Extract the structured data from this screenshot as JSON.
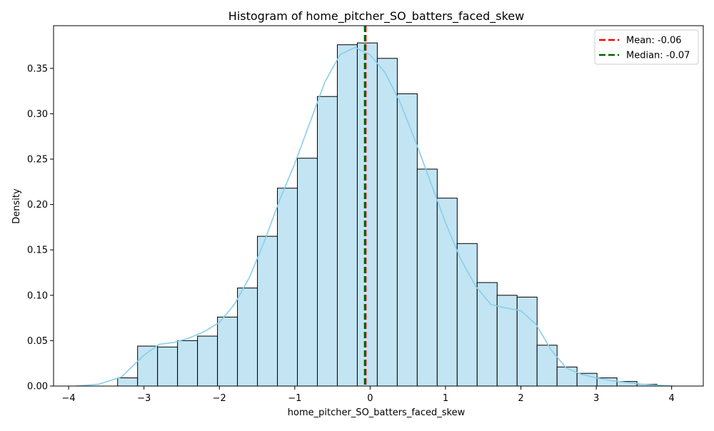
{
  "chart_data": {
    "type": "bar",
    "title": "Histogram of home_pitcher_SO_batters_faced_skew",
    "xlabel": "home_pitcher_SO_batters_faced_skew",
    "ylabel": "Density",
    "xlim": [
      -4.2,
      4.42
    ],
    "ylim": [
      0,
      0.397
    ],
    "xticks": [
      -4,
      -3,
      -2,
      -1,
      0,
      1,
      2,
      3,
      4
    ],
    "xtick_labels": [
      "−4",
      "−3",
      "−2",
      "−1",
      "0",
      "1",
      "2",
      "3",
      "4"
    ],
    "yticks": [
      0.0,
      0.05,
      0.1,
      0.15,
      0.2,
      0.25,
      0.3,
      0.35
    ],
    "ytick_labels": [
      "0.00",
      "0.05",
      "0.10",
      "0.15",
      "0.20",
      "0.25",
      "0.30",
      "0.35"
    ],
    "grid": false,
    "legend_position": "top-right",
    "bins": {
      "edges": [
        -3.35,
        -3.085,
        -2.82,
        -2.555,
        -2.29,
        -2.025,
        -1.76,
        -1.495,
        -1.23,
        -0.965,
        -0.7,
        -0.435,
        -0.17,
        0.095,
        0.36,
        0.625,
        0.89,
        1.155,
        1.42,
        1.685,
        1.95,
        2.215,
        2.48,
        2.745,
        3.01,
        3.275,
        3.54,
        3.805
      ],
      "density": [
        0.009,
        0.044,
        0.043,
        0.05,
        0.055,
        0.076,
        0.108,
        0.165,
        0.218,
        0.251,
        0.319,
        0.376,
        0.378,
        0.361,
        0.322,
        0.239,
        0.207,
        0.157,
        0.114,
        0.1,
        0.098,
        0.045,
        0.021,
        0.014,
        0.009,
        0.005,
        0.002
      ]
    },
    "kde": {
      "x": [
        -3.9,
        -3.6,
        -3.3,
        -3.0,
        -2.8,
        -2.6,
        -2.4,
        -2.2,
        -2.0,
        -1.8,
        -1.6,
        -1.4,
        -1.2,
        -1.0,
        -0.8,
        -0.6,
        -0.4,
        -0.2,
        0.0,
        0.2,
        0.4,
        0.6,
        0.8,
        1.0,
        1.2,
        1.4,
        1.6,
        1.8,
        2.0,
        2.2,
        2.4,
        2.6,
        2.8,
        3.0,
        3.2,
        3.4,
        3.6,
        3.8,
        4.02
      ],
      "y": [
        0.0,
        0.002,
        0.01,
        0.034,
        0.046,
        0.048,
        0.053,
        0.06,
        0.07,
        0.09,
        0.12,
        0.16,
        0.205,
        0.245,
        0.29,
        0.335,
        0.365,
        0.373,
        0.365,
        0.345,
        0.312,
        0.27,
        0.225,
        0.18,
        0.14,
        0.11,
        0.09,
        0.086,
        0.083,
        0.068,
        0.04,
        0.02,
        0.013,
        0.009,
        0.006,
        0.004,
        0.002,
        0.001,
        0.0
      ]
    },
    "lines": [
      {
        "name": "Mean: -0.06",
        "value": -0.06,
        "color": "#ff0000",
        "style": "dashed"
      },
      {
        "name": "Median: -0.07",
        "value": -0.07,
        "color": "#006400",
        "style": "dashed"
      }
    ],
    "colors": {
      "bar_fill": "#c3e4f3",
      "bar_edge": "#000000",
      "kde_line": "#87ceeb"
    }
  }
}
